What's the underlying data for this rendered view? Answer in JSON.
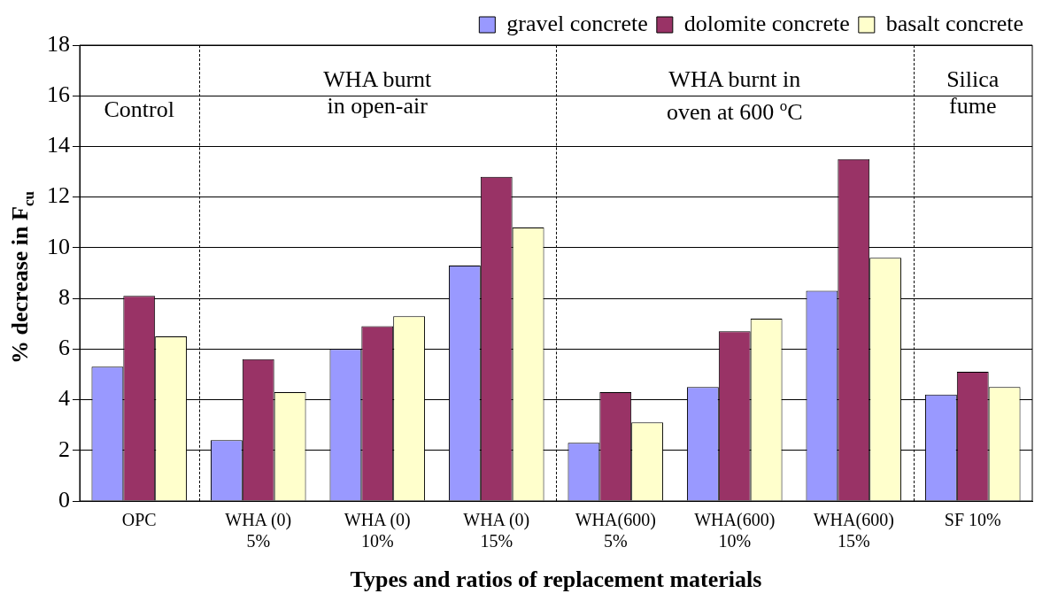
{
  "chart_data": {
    "type": "bar",
    "xlabel": "Types and ratios of replacement materials",
    "ylabel": "% decrease in F$_{cu}$",
    "categories": [
      "OPC",
      "WHA (0)\n5%",
      "WHA (0)\n10%",
      "WHA (0)\n15%",
      "WHA(600)\n5%",
      "WHA(600)\n10%",
      "WHA(600)\n15%",
      "SF 10%"
    ],
    "series": [
      {
        "name": "gravel concrete",
        "color": "#9999ff",
        "values": [
          5.3,
          2.4,
          6.0,
          9.3,
          2.3,
          4.5,
          8.3,
          4.2
        ]
      },
      {
        "name": "dolomite concrete",
        "color": "#993366",
        "values": [
          8.1,
          5.6,
          6.9,
          12.8,
          4.3,
          6.7,
          13.5,
          5.1
        ]
      },
      {
        "name": "basalt concrete",
        "color": "#ffffcc",
        "values": [
          6.5,
          4.3,
          7.3,
          10.8,
          3.1,
          7.2,
          9.6,
          4.5
        ]
      }
    ],
    "ylim": [
      0,
      18
    ],
    "yticks": [
      0,
      2,
      4,
      6,
      8,
      10,
      12,
      14,
      16,
      18
    ],
    "grid": "y",
    "legend": "top",
    "annotations": [
      "Control",
      "WHA burnt\nin open-air",
      "WHA burnt in\noven at 600 $^{o}$C",
      "Silica\nfume"
    ]
  }
}
